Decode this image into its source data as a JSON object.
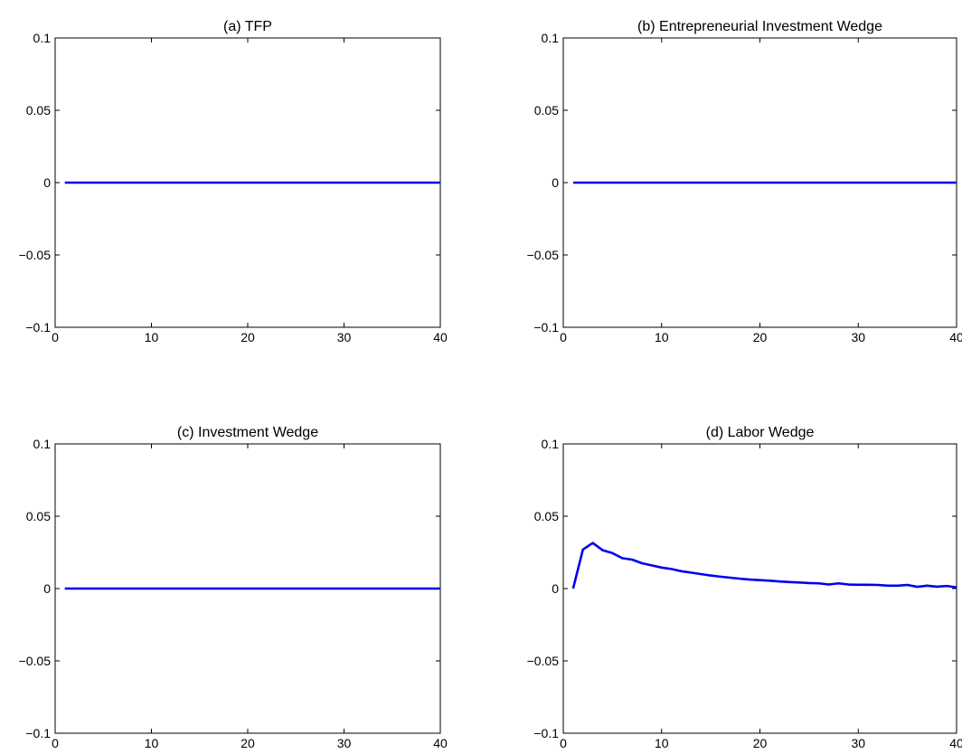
{
  "chart_data": [
    {
      "type": "line",
      "title": "(a) TFP",
      "xlabel": "",
      "ylabel": "",
      "xlim": [
        0,
        40
      ],
      "ylim": [
        -0.1,
        0.1
      ],
      "xticks": [
        0,
        10,
        20,
        30,
        40
      ],
      "xtick_labels": [
        "0",
        "10",
        "20",
        "30",
        "40"
      ],
      "yticks": [
        -0.1,
        -0.05,
        0,
        0.05,
        0.1
      ],
      "ytick_labels": [
        "−0.1",
        "−0.05",
        "0",
        "0.05",
        "0.1"
      ],
      "grid": false,
      "series": [
        {
          "color": "#0000ee",
          "x": [
            1,
            2,
            3,
            4,
            5,
            6,
            7,
            8,
            9,
            10,
            11,
            12,
            13,
            14,
            15,
            16,
            17,
            18,
            19,
            20,
            21,
            22,
            23,
            24,
            25,
            26,
            27,
            28,
            29,
            30,
            31,
            32,
            33,
            34,
            35,
            36,
            37,
            38,
            39,
            40
          ],
          "y": [
            0,
            0,
            0,
            0,
            0,
            0,
            0,
            0,
            0,
            0,
            0,
            0,
            0,
            0,
            0,
            0,
            0,
            0,
            0,
            0,
            0,
            0,
            0,
            0,
            0,
            0,
            0,
            0,
            0,
            0,
            0,
            0,
            0,
            0,
            0,
            0,
            0,
            0,
            0,
            0
          ]
        }
      ]
    },
    {
      "type": "line",
      "title": "(b) Entrepreneurial Investment Wedge",
      "xlabel": "",
      "ylabel": "",
      "xlim": [
        0,
        40
      ],
      "ylim": [
        -0.1,
        0.1
      ],
      "xticks": [
        0,
        10,
        20,
        30,
        40
      ],
      "xtick_labels": [
        "0",
        "10",
        "20",
        "30",
        "40"
      ],
      "yticks": [
        -0.1,
        -0.05,
        0,
        0.05,
        0.1
      ],
      "ytick_labels": [
        "−0.1",
        "−0.05",
        "0",
        "0.05",
        "0.1"
      ],
      "grid": false,
      "series": [
        {
          "color": "#0000ee",
          "x": [
            1,
            2,
            3,
            4,
            5,
            6,
            7,
            8,
            9,
            10,
            11,
            12,
            13,
            14,
            15,
            16,
            17,
            18,
            19,
            20,
            21,
            22,
            23,
            24,
            25,
            26,
            27,
            28,
            29,
            30,
            31,
            32,
            33,
            34,
            35,
            36,
            37,
            38,
            39,
            40
          ],
          "y": [
            0,
            0,
            0,
            0,
            0,
            0,
            0,
            0,
            0,
            0,
            0,
            0,
            0,
            0,
            0,
            0,
            0,
            0,
            0,
            0,
            0,
            0,
            0,
            0,
            0,
            0,
            0,
            0,
            0,
            0,
            0,
            0,
            0,
            0,
            0,
            0,
            0,
            0,
            0,
            0
          ]
        }
      ]
    },
    {
      "type": "line",
      "title": "(c) Investment Wedge",
      "xlabel": "",
      "ylabel": "",
      "xlim": [
        0,
        40
      ],
      "ylim": [
        -0.1,
        0.1
      ],
      "xticks": [
        0,
        10,
        20,
        30,
        40
      ],
      "xtick_labels": [
        "0",
        "10",
        "20",
        "30",
        "40"
      ],
      "yticks": [
        -0.1,
        -0.05,
        0,
        0.05,
        0.1
      ],
      "ytick_labels": [
        "−0.1",
        "−0.05",
        "0",
        "0.05",
        "0.1"
      ],
      "grid": false,
      "series": [
        {
          "color": "#0000ee",
          "x": [
            1,
            2,
            3,
            4,
            5,
            6,
            7,
            8,
            9,
            10,
            11,
            12,
            13,
            14,
            15,
            16,
            17,
            18,
            19,
            20,
            21,
            22,
            23,
            24,
            25,
            26,
            27,
            28,
            29,
            30,
            31,
            32,
            33,
            34,
            35,
            36,
            37,
            38,
            39,
            40
          ],
          "y": [
            0,
            0,
            0,
            0,
            0,
            0,
            0,
            0,
            0,
            0,
            0,
            0,
            0,
            0,
            0,
            0,
            0,
            0,
            0,
            0,
            0,
            0,
            0,
            0,
            0,
            0,
            0,
            0,
            0,
            0,
            0,
            0,
            0,
            0,
            0,
            0,
            0,
            0,
            0,
            0
          ]
        }
      ]
    },
    {
      "type": "line",
      "title": "(d) Labor Wedge",
      "xlabel": "",
      "ylabel": "",
      "xlim": [
        0,
        40
      ],
      "ylim": [
        -0.1,
        0.1
      ],
      "xticks": [
        0,
        10,
        20,
        30,
        40
      ],
      "xtick_labels": [
        "0",
        "10",
        "20",
        "30",
        "40"
      ],
      "yticks": [
        -0.1,
        -0.05,
        0,
        0.05,
        0.1
      ],
      "ytick_labels": [
        "−0.1",
        "−0.05",
        "0",
        "0.05",
        "0.1"
      ],
      "grid": false,
      "series": [
        {
          "color": "#0000ee",
          "x": [
            1,
            2,
            3,
            4,
            5,
            6,
            7,
            8,
            9,
            10,
            11,
            12,
            13,
            14,
            15,
            16,
            17,
            18,
            19,
            20,
            21,
            22,
            23,
            24,
            25,
            26,
            27,
            28,
            29,
            30,
            31,
            32,
            33,
            34,
            35,
            36,
            37,
            38,
            39,
            40
          ],
          "y": [
            0,
            0.027,
            0.0315,
            0.0265,
            0.0245,
            0.021,
            0.02,
            0.0175,
            0.016,
            0.0145,
            0.0135,
            0.012,
            0.011,
            0.01,
            0.009,
            0.0082,
            0.0075,
            0.0068,
            0.0062,
            0.0058,
            0.0054,
            0.0049,
            0.0045,
            0.0042,
            0.0038,
            0.0036,
            0.0028,
            0.0036,
            0.0028,
            0.0026,
            0.0026,
            0.0025,
            0.002,
            0.002,
            0.0025,
            0.0012,
            0.002,
            0.0013,
            0.0018,
            0.0008
          ]
        }
      ]
    }
  ]
}
